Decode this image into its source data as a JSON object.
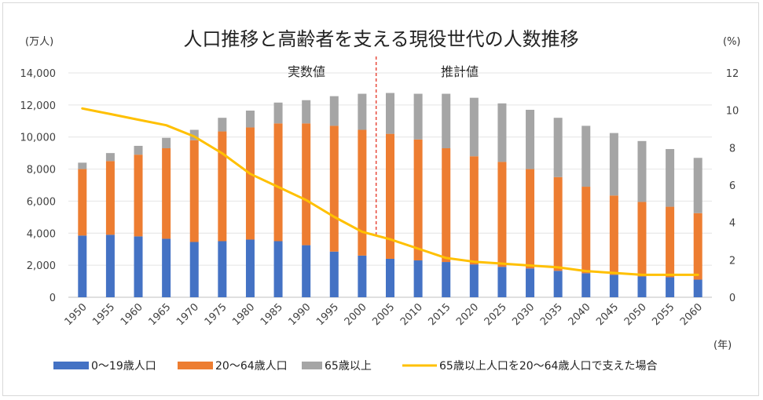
{
  "chart_data": {
    "type": "bar+line",
    "title": "人口推移と高齢者を支える現役世代の人数推移",
    "left_unit": "(万人)",
    "right_unit": "(%)",
    "x_unit": "(年)",
    "period_labels": {
      "actual": "実数値",
      "estimate": "推計値"
    },
    "categories": [
      "1950",
      "1955",
      "1960",
      "1965",
      "1970",
      "1975",
      "1980",
      "1985",
      "1990",
      "1995",
      "2000",
      "2005",
      "2010",
      "2015",
      "2020",
      "2025",
      "2030",
      "2035",
      "2040",
      "2045",
      "2050",
      "2055",
      "2060"
    ],
    "ylim": [
      0,
      14000
    ],
    "y_ticks": [
      "0",
      "2,000",
      "4,000",
      "6,000",
      "8,000",
      "10,000",
      "12,000",
      "14,000"
    ],
    "y2lim": [
      0,
      12
    ],
    "y2_ticks": [
      "0",
      "2",
      "4",
      "6",
      "8",
      "10",
      "12"
    ],
    "series": [
      {
        "name": "0〜19歳人口",
        "kind": "bar",
        "color": "#4472c4",
        "values": [
          3850,
          3900,
          3800,
          3650,
          3450,
          3500,
          3600,
          3500,
          3250,
          2850,
          2600,
          2400,
          2300,
          2200,
          2050,
          1900,
          1800,
          1650,
          1500,
          1400,
          1300,
          1250,
          1100
        ]
      },
      {
        "name": "20〜64歳人口",
        "kind": "bar",
        "color": "#ed7d31",
        "values": [
          4150,
          4600,
          5100,
          5650,
          6350,
          6850,
          7000,
          7350,
          7600,
          7850,
          7850,
          7800,
          7550,
          7100,
          6750,
          6550,
          6200,
          5850,
          5400,
          4950,
          4650,
          4400,
          4150
        ]
      },
      {
        "name": "65歳以上",
        "kind": "bar",
        "color": "#a5a5a5",
        "values": [
          400,
          500,
          550,
          650,
          650,
          850,
          1050,
          1300,
          1450,
          1850,
          2250,
          2550,
          2850,
          3400,
          3650,
          3650,
          3700,
          3700,
          3800,
          3900,
          3800,
          3600,
          3450
        ]
      },
      {
        "name": "65歳以上人口を20〜64歳人口で支えた場合",
        "kind": "line",
        "color": "#ffc000",
        "axis": "right",
        "values": [
          10.1,
          9.8,
          9.5,
          9.2,
          8.6,
          7.7,
          6.6,
          5.9,
          5.2,
          4.3,
          3.5,
          3.1,
          2.6,
          2.1,
          1.9,
          1.8,
          1.7,
          1.6,
          1.4,
          1.3,
          1.2,
          1.2,
          1.2
        ]
      }
    ]
  }
}
